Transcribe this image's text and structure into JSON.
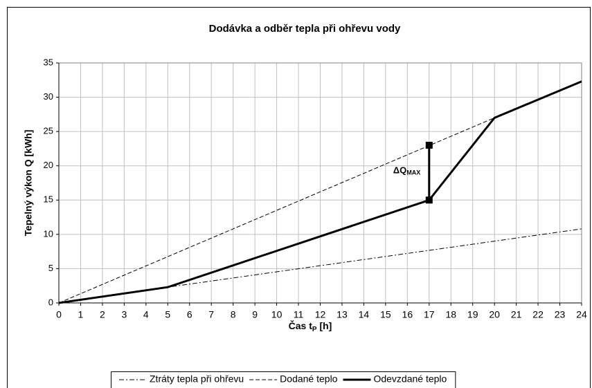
{
  "chart_data": {
    "type": "line",
    "title": "Dodávka a odběr tepla při ohřevu vody",
    "x_label": [
      "Čas t",
      "P",
      " [h]"
    ],
    "y_label": "Tepelný výkon Q [kWh]",
    "xlim": [
      0,
      24
    ],
    "ylim": [
      0,
      35
    ],
    "xticks": [
      0,
      1,
      2,
      3,
      4,
      5,
      6,
      7,
      8,
      9,
      10,
      11,
      12,
      13,
      14,
      15,
      16,
      17,
      18,
      19,
      20,
      21,
      22,
      23,
      24
    ],
    "yticks": [
      0,
      5,
      10,
      15,
      20,
      25,
      30,
      35
    ],
    "grid": true,
    "legend": "bottom",
    "series": [
      {
        "name": "Ztráty tepla při ohřevu",
        "color": "#000000",
        "style": "dashdot",
        "x": [
          0,
          5,
          24
        ],
        "values": [
          0,
          2.3,
          10.8
        ]
      },
      {
        "name": "Dodané teplo",
        "color": "#000000",
        "style": "dashed",
        "x": [
          0,
          20
        ],
        "values": [
          0,
          27
        ]
      },
      {
        "name": "Odevzdané teplo",
        "color": "#000000",
        "style": "solid",
        "x": [
          0,
          5,
          17,
          20,
          24
        ],
        "values": [
          0,
          2.3,
          15,
          27,
          32.3
        ]
      }
    ],
    "annotation": {
      "label": [
        "ΔQ",
        "MAX"
      ],
      "x": 17,
      "values": [
        15,
        23
      ]
    }
  }
}
